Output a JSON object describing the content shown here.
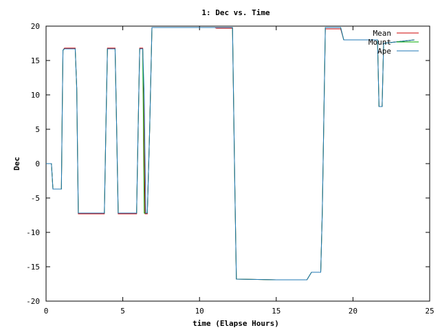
{
  "chart_data": {
    "type": "line",
    "title": "1: Dec vs. Time",
    "xlabel": "time (Elapse Hours)",
    "ylabel": "Dec",
    "xlim": [
      0,
      25
    ],
    "ylim": [
      -20,
      20
    ],
    "xticks": [
      0,
      5,
      10,
      15,
      20,
      25
    ],
    "yticks": [
      -20,
      -15,
      -10,
      -5,
      0,
      5,
      10,
      15,
      20
    ],
    "grid": false,
    "legend_position": "top-right",
    "series": [
      {
        "name": "Mean",
        "color": "#cc0000",
        "points": [
          [
            0,
            0
          ],
          [
            0.35,
            0
          ],
          [
            0.45,
            -3.7
          ],
          [
            1.0,
            -3.7
          ],
          [
            1.05,
            6.5
          ],
          [
            1.1,
            16.5
          ],
          [
            1.2,
            16.8
          ],
          [
            1.9,
            16.8
          ],
          [
            2.0,
            11
          ],
          [
            2.1,
            -7.3
          ],
          [
            3.8,
            -7.3
          ],
          [
            3.9,
            5
          ],
          [
            4.0,
            16.8
          ],
          [
            4.5,
            16.8
          ],
          [
            4.6,
            5
          ],
          [
            4.7,
            -7.3
          ],
          [
            5.9,
            -7.3
          ],
          [
            6.0,
            5
          ],
          [
            6.1,
            16.8
          ],
          [
            6.3,
            16.8
          ],
          [
            6.45,
            -7.3
          ],
          [
            6.6,
            -7.3
          ],
          [
            6.75,
            5
          ],
          [
            6.9,
            19.8
          ],
          [
            11.0,
            19.8
          ],
          [
            11.1,
            19.7
          ],
          [
            12.15,
            19.7
          ],
          [
            12.3,
            -3
          ],
          [
            12.4,
            -16.8
          ],
          [
            15.0,
            -16.9
          ],
          [
            17.0,
            -16.9
          ],
          [
            17.3,
            -15.8
          ],
          [
            17.9,
            -15.8
          ],
          [
            18.0,
            -7
          ],
          [
            18.2,
            19.6
          ],
          [
            19.2,
            19.6
          ],
          [
            19.4,
            18.0
          ],
          [
            21.6,
            18.0
          ],
          [
            21.7,
            8.3
          ],
          [
            21.9,
            8.3
          ],
          [
            22.0,
            17.5
          ],
          [
            24.0,
            18.0
          ]
        ]
      },
      {
        "name": "Mount",
        "color": "#00aa00",
        "points": [
          [
            0,
            0
          ],
          [
            0.35,
            0
          ],
          [
            0.45,
            -3.7
          ],
          [
            1.0,
            -3.7
          ],
          [
            1.05,
            6.5
          ],
          [
            1.1,
            16.5
          ],
          [
            1.2,
            16.7
          ],
          [
            1.9,
            16.7
          ],
          [
            2.0,
            11
          ],
          [
            2.1,
            -7.2
          ],
          [
            3.8,
            -7.2
          ],
          [
            3.9,
            5
          ],
          [
            4.0,
            16.7
          ],
          [
            4.5,
            16.7
          ],
          [
            4.6,
            5
          ],
          [
            4.7,
            -7.2
          ],
          [
            5.9,
            -7.2
          ],
          [
            6.0,
            5
          ],
          [
            6.1,
            16.7
          ],
          [
            6.3,
            16.7
          ],
          [
            6.4,
            -7.2
          ],
          [
            6.6,
            -7.2
          ],
          [
            6.75,
            5
          ],
          [
            6.9,
            19.8
          ],
          [
            11.0,
            19.8
          ],
          [
            11.1,
            19.8
          ],
          [
            12.15,
            19.8
          ],
          [
            12.3,
            -3
          ],
          [
            12.4,
            -16.8
          ],
          [
            15.0,
            -16.9
          ],
          [
            17.0,
            -16.9
          ],
          [
            17.3,
            -15.8
          ],
          [
            17.9,
            -15.8
          ],
          [
            18.0,
            -7
          ],
          [
            18.2,
            19.8
          ],
          [
            19.2,
            19.8
          ],
          [
            19.4,
            18.0
          ],
          [
            21.6,
            18.0
          ],
          [
            21.7,
            8.3
          ],
          [
            21.9,
            8.3
          ],
          [
            22.0,
            17.5
          ],
          [
            24.0,
            18.0
          ]
        ]
      },
      {
        "name": "Ape",
        "color": "#1f77b4",
        "points": [
          [
            0,
            0
          ],
          [
            0.35,
            0
          ],
          [
            0.45,
            -3.7
          ],
          [
            1.0,
            -3.7
          ],
          [
            1.05,
            6.5
          ],
          [
            1.1,
            16.5
          ],
          [
            1.2,
            16.7
          ],
          [
            1.9,
            16.7
          ],
          [
            2.0,
            11
          ],
          [
            2.1,
            -7.2
          ],
          [
            3.8,
            -7.2
          ],
          [
            3.9,
            5
          ],
          [
            4.0,
            16.7
          ],
          [
            4.5,
            16.7
          ],
          [
            4.6,
            5
          ],
          [
            4.7,
            -7.2
          ],
          [
            5.9,
            -7.2
          ],
          [
            6.0,
            5
          ],
          [
            6.1,
            16.7
          ],
          [
            6.3,
            16.7
          ],
          [
            6.4,
            10
          ],
          [
            6.5,
            -7.2
          ],
          [
            6.6,
            -7.2
          ],
          [
            6.75,
            5
          ],
          [
            6.9,
            19.8
          ],
          [
            11.0,
            19.8
          ],
          [
            11.1,
            19.8
          ],
          [
            12.15,
            19.8
          ],
          [
            12.3,
            -3
          ],
          [
            12.4,
            -16.8
          ],
          [
            15.0,
            -16.9
          ],
          [
            17.0,
            -16.9
          ],
          [
            17.3,
            -15.8
          ],
          [
            17.9,
            -15.8
          ],
          [
            18.0,
            -7
          ],
          [
            18.2,
            19.8
          ],
          [
            19.2,
            19.8
          ],
          [
            19.4,
            18.0
          ],
          [
            21.6,
            18.0
          ],
          [
            21.7,
            8.3
          ],
          [
            21.9,
            8.3
          ],
          [
            22.0,
            17.5
          ],
          [
            24.0,
            18.0
          ]
        ]
      }
    ]
  }
}
